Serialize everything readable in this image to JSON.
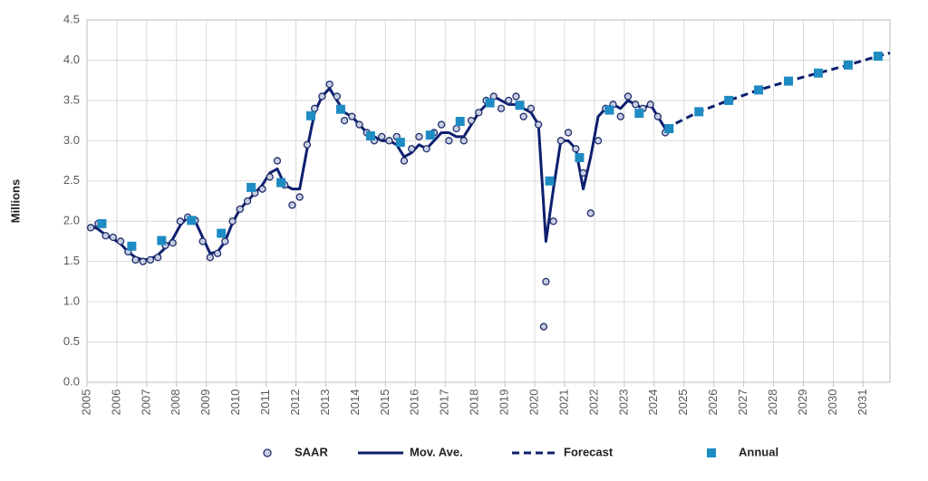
{
  "chart_data": {
    "type": "line",
    "y_label": "Millions",
    "xlim": [
      2005,
      2031.9
    ],
    "xticks": [
      2005,
      2006,
      2007,
      2008,
      2009,
      2010,
      2011,
      2012,
      2013,
      2014,
      2015,
      2016,
      2017,
      2018,
      2019,
      2020,
      2021,
      2022,
      2023,
      2024,
      2025,
      2026,
      2027,
      2028,
      2029,
      2030,
      2031
    ],
    "ylim": [
      0,
      4.5
    ],
    "yticks": [
      {
        "value": 0,
        "label": "0.0"
      },
      {
        "value": 0.5,
        "label": "0.5"
      },
      {
        "value": 1,
        "label": "1.0"
      },
      {
        "value": 1.5,
        "label": "1.5"
      },
      {
        "value": 2,
        "label": "2.0"
      },
      {
        "value": 2.5,
        "label": "2.5"
      },
      {
        "value": 3,
        "label": "3.0"
      },
      {
        "value": 3.5,
        "label": "3.5"
      },
      {
        "value": 4,
        "label": "4.0"
      },
      {
        "value": 4.5,
        "label": "4.5"
      }
    ],
    "grid": true,
    "series": [
      {
        "name": "SAAR",
        "marker": "circle",
        "color": "#1f2d6b",
        "x": [
          2005.125,
          2005.375,
          2005.625,
          2005.875,
          2006.125,
          2006.375,
          2006.625,
          2006.875,
          2007.125,
          2007.375,
          2007.625,
          2007.875,
          2008.125,
          2008.375,
          2008.625,
          2008.875,
          2009.125,
          2009.375,
          2009.625,
          2009.875,
          2010.125,
          2010.375,
          2010.625,
          2010.875,
          2011.125,
          2011.375,
          2011.625,
          2011.875,
          2012.125,
          2012.375,
          2012.625,
          2012.875,
          2013.125,
          2013.375,
          2013.625,
          2013.875,
          2014.125,
          2014.375,
          2014.625,
          2014.875,
          2015.125,
          2015.375,
          2015.625,
          2015.875,
          2016.125,
          2016.375,
          2016.625,
          2016.875,
          2017.125,
          2017.375,
          2017.625,
          2017.875,
          2018.125,
          2018.375,
          2018.625,
          2018.875,
          2019.125,
          2019.375,
          2019.625,
          2019.875,
          2020.125,
          2020.3,
          2020.375,
          2020.625,
          2020.875,
          2021.125,
          2021.375,
          2021.625,
          2021.875,
          2022.125,
          2022.375,
          2022.625,
          2022.875,
          2023.125,
          2023.375,
          2023.625,
          2023.875,
          2024.125,
          2024.375
        ],
        "values": [
          1.92,
          1.97,
          1.82,
          1.8,
          1.75,
          1.62,
          1.52,
          1.5,
          1.52,
          1.55,
          1.7,
          1.73,
          2.0,
          2.05,
          2.01,
          1.75,
          1.55,
          1.6,
          1.75,
          2.0,
          2.15,
          2.25,
          2.35,
          2.4,
          2.55,
          2.75,
          2.45,
          2.2,
          2.3,
          2.95,
          3.4,
          3.55,
          3.7,
          3.55,
          3.25,
          3.3,
          3.2,
          3.1,
          3.0,
          3.05,
          3.0,
          3.05,
          2.75,
          2.9,
          3.05,
          2.9,
          3.1,
          3.2,
          3.0,
          3.15,
          3.0,
          3.25,
          3.35,
          3.5,
          3.55,
          3.4,
          3.5,
          3.55,
          3.3,
          3.4,
          3.2,
          0.69,
          1.25,
          2.0,
          3.0,
          3.1,
          2.9,
          2.6,
          2.1,
          3.0,
          3.4,
          3.45,
          3.3,
          3.55,
          3.45,
          3.4,
          3.45,
          3.3,
          3.1
        ]
      },
      {
        "name": "Mov. Ave.",
        "marker": "line",
        "color": "#0d1f6e",
        "x": [
          2005.125,
          2005.375,
          2005.625,
          2005.875,
          2006.125,
          2006.375,
          2006.625,
          2006.875,
          2007.125,
          2007.375,
          2007.625,
          2007.875,
          2008.125,
          2008.375,
          2008.625,
          2008.875,
          2009.125,
          2009.375,
          2009.625,
          2009.875,
          2010.125,
          2010.375,
          2010.625,
          2010.875,
          2011.125,
          2011.375,
          2011.625,
          2011.875,
          2012.125,
          2012.375,
          2012.625,
          2012.875,
          2013.125,
          2013.375,
          2013.625,
          2013.875,
          2014.125,
          2014.375,
          2014.625,
          2014.875,
          2015.125,
          2015.375,
          2015.625,
          2015.875,
          2016.125,
          2016.375,
          2016.625,
          2016.875,
          2017.125,
          2017.375,
          2017.625,
          2017.875,
          2018.125,
          2018.375,
          2018.625,
          2018.875,
          2019.125,
          2019.375,
          2019.625,
          2019.875,
          2020.125,
          2020.375,
          2020.625,
          2020.875,
          2021.125,
          2021.375,
          2021.625,
          2021.875,
          2022.125,
          2022.375,
          2022.625,
          2022.875,
          2023.125,
          2023.375,
          2023.625,
          2023.875,
          2024.125,
          2024.375
        ],
        "values": [
          1.95,
          1.9,
          1.83,
          1.78,
          1.72,
          1.62,
          1.55,
          1.52,
          1.53,
          1.58,
          1.67,
          1.78,
          1.95,
          2.05,
          2.0,
          1.8,
          1.6,
          1.62,
          1.75,
          1.98,
          2.15,
          2.25,
          2.35,
          2.45,
          2.6,
          2.65,
          2.45,
          2.4,
          2.4,
          2.9,
          3.35,
          3.55,
          3.65,
          3.5,
          3.35,
          3.3,
          3.2,
          3.1,
          3.05,
          3.0,
          3.0,
          2.95,
          2.8,
          2.85,
          2.95,
          2.9,
          3.0,
          3.1,
          3.1,
          3.05,
          3.05,
          3.2,
          3.35,
          3.45,
          3.55,
          3.5,
          3.45,
          3.45,
          3.4,
          3.35,
          3.2,
          1.75,
          2.4,
          3.0,
          3.0,
          2.9,
          2.4,
          2.8,
          3.3,
          3.4,
          3.45,
          3.4,
          3.5,
          3.45,
          3.4,
          3.45,
          3.3,
          3.15
        ]
      },
      {
        "name": "Forecast",
        "marker": "dashed",
        "color": "#0d1f6e",
        "x": [
          2024.375,
          2025.5,
          2026.5,
          2027.5,
          2028.5,
          2029.5,
          2030.5,
          2031.5,
          2031.9
        ],
        "values": [
          3.15,
          3.36,
          3.5,
          3.63,
          3.74,
          3.84,
          3.94,
          4.05,
          4.09
        ]
      },
      {
        "name": "Annual",
        "marker": "square",
        "color": "#1e8bc3",
        "x": [
          2005.5,
          2006.5,
          2007.5,
          2008.5,
          2009.5,
          2010.5,
          2011.5,
          2012.5,
          2013.5,
          2014.5,
          2015.5,
          2016.5,
          2017.5,
          2018.5,
          2019.5,
          2020.5,
          2021.5,
          2022.5,
          2023.5,
          2024.5,
          2025.5,
          2026.5,
          2027.5,
          2028.5,
          2029.5,
          2030.5,
          2031.5
        ],
        "values": [
          1.97,
          1.69,
          1.76,
          2.01,
          1.85,
          2.42,
          2.48,
          3.31,
          3.39,
          3.06,
          2.98,
          3.07,
          3.24,
          3.47,
          3.44,
          2.5,
          2.79,
          3.38,
          3.34,
          3.15,
          3.36,
          3.5,
          3.63,
          3.74,
          3.84,
          3.94,
          4.05
        ]
      }
    ]
  }
}
